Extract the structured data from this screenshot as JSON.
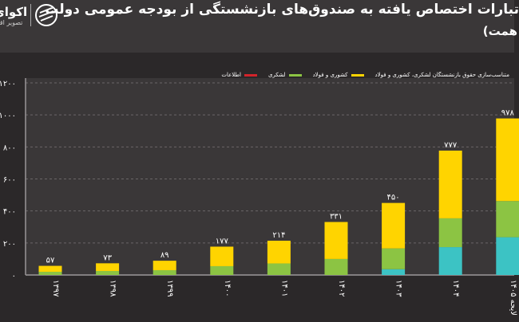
{
  "header": {
    "title": "تبارات اختصاص یافته به صندوق‌های بازنشستگی از بودجه عمومی دولت",
    "subtitle": "همت)",
    "logo_name": "اکوای",
    "logo_tagline": "تصویر اقت"
  },
  "chart_data": {
    "type": "bar",
    "stacked": true,
    "categories": [
      "۱۳۹۷",
      "۱۳۹۸",
      "۱۳۹۹",
      "۱۴۰۰",
      "۱۴۰۱",
      "۱۴۰۲",
      "۱۴۰۳",
      "۱۴۰۴",
      "لایحه ۱۴۰۵"
    ],
    "totals_labels": [
      "۵۷",
      "۷۳",
      "۸۹",
      "۱۷۷",
      "۲۱۴",
      "۳۳۱",
      "۴۵۰",
      "۷۷۷",
      "۹۷۸"
    ],
    "totals": [
      57,
      73,
      89,
      177,
      214,
      331,
      450,
      777,
      978
    ],
    "series": [
      {
        "name": "متناسب‌سازی حقوق بازنشستگان لشکری، کشوری و فولاد",
        "color": "#3cc3c4",
        "values": [
          0,
          0,
          0,
          0,
          0,
          0,
          36,
          174,
          236
        ]
      },
      {
        "name": "لشکری",
        "color": "#8cc443",
        "values": [
          20,
          25,
          30,
          55,
          72,
          100,
          130,
          180,
          226
        ]
      },
      {
        "name": "کشوری و فولاد",
        "color": "#ffd400",
        "values": [
          37,
          48,
          59,
          122,
          142,
          231,
          284,
          423,
          516
        ]
      },
      {
        "name": "اطلاعات",
        "color": "#d2232a",
        "values": [
          0,
          0,
          0,
          0,
          0,
          0,
          0,
          0,
          0
        ]
      }
    ],
    "ylim": [
      0,
      1200
    ],
    "yticks": [
      0,
      200,
      400,
      600,
      800,
      1000,
      1200
    ],
    "ytick_labels": [
      "۰",
      "۲۰۰",
      "۴۰۰",
      "۶۰۰",
      "۸۰۰",
      "۱۰۰۰",
      "۱۲۰۰"
    ],
    "grid": true,
    "legend_position": "top-right"
  }
}
